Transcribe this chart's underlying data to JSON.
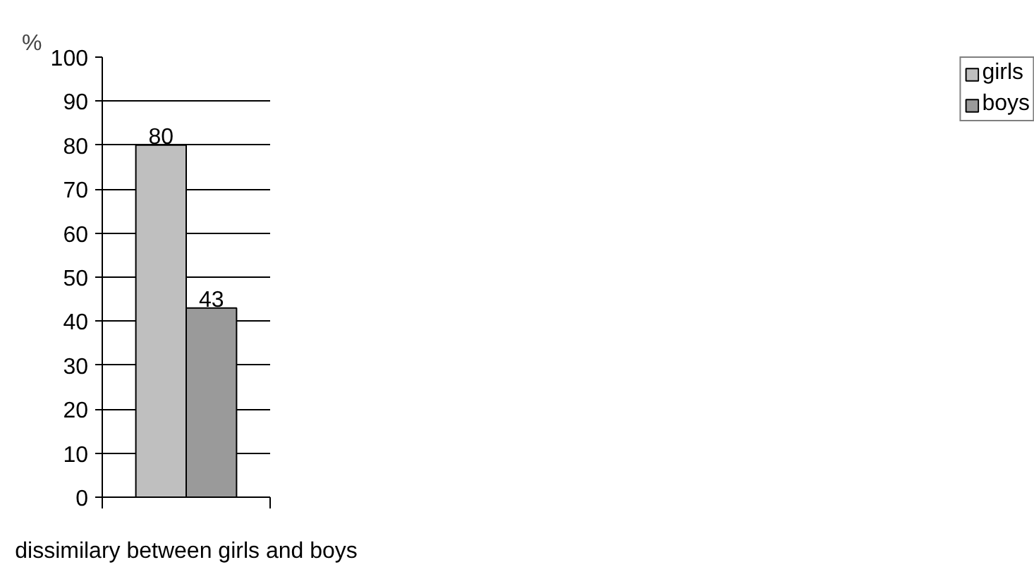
{
  "chart_data": {
    "type": "bar",
    "ylabel": "%",
    "categories": [
      "dissimilary between girls and boys"
    ],
    "series": [
      {
        "name": "girls",
        "color": "#bfbfbf",
        "values": [
          80
        ]
      },
      {
        "name": "boys",
        "color": "#9a9a9a",
        "values": [
          43
        ]
      }
    ],
    "ylim": [
      0,
      100
    ],
    "yticks": [
      0,
      10,
      20,
      30,
      40,
      50,
      60,
      70,
      80,
      90,
      100
    ],
    "grid": "y",
    "legend": "right",
    "data_labels": true
  }
}
